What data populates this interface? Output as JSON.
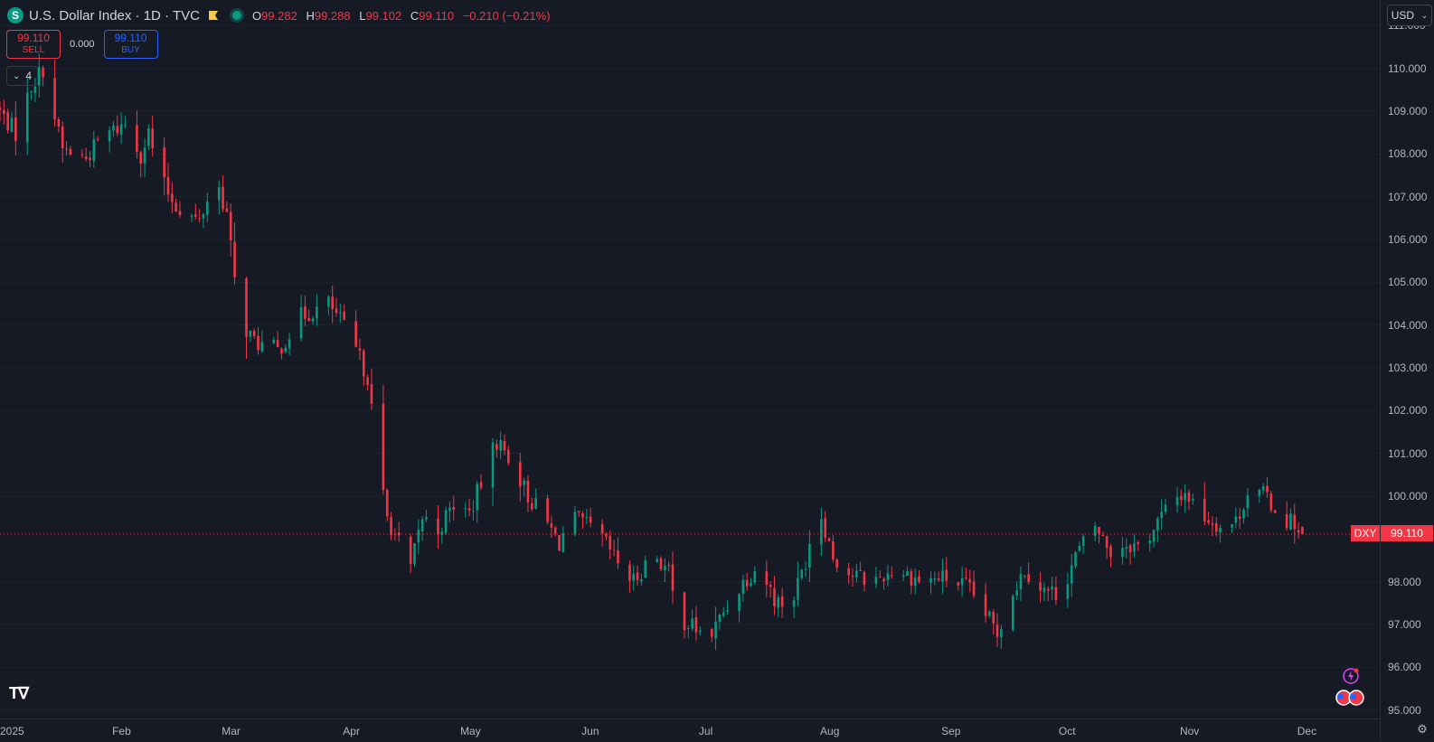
{
  "header": {
    "symbol_icon": "S",
    "title": "U.S. Dollar Index · 1D · TVC",
    "ohlc": {
      "o_label": "O",
      "o_value": "99.282",
      "h_label": "H",
      "h_value": "99.288",
      "l_label": "L",
      "l_value": "99.102",
      "c_label": "C",
      "c_value": "99.110",
      "change": "−0.210 (−0.21%)"
    }
  },
  "trade": {
    "sell_price": "99.110",
    "sell_label": "SELL",
    "spread": "0.000",
    "buy_price": "99.110",
    "buy_label": "BUY"
  },
  "indicators_toggle": {
    "count": "4"
  },
  "currency_selector": {
    "label": "USD"
  },
  "last_price": {
    "symbol": "DXY",
    "value": "99.110"
  },
  "colors": {
    "up": "#089981",
    "down": "#f23645",
    "background": "#161a25",
    "grid": "#1f2330"
  },
  "chart_data": {
    "type": "candlestick",
    "title": "",
    "xlabel": "",
    "ylabel": "",
    "ylim": [
      94.8,
      111.6
    ],
    "y_ticks": [
      "111.000",
      "110.000",
      "109.000",
      "108.000",
      "107.000",
      "106.000",
      "105.000",
      "104.000",
      "103.000",
      "102.000",
      "101.000",
      "100.000",
      "98.000",
      "97.000",
      "96.000",
      "95.000"
    ],
    "x_ticks": [
      {
        "label": "2025",
        "day": 0
      },
      {
        "label": "Feb",
        "day": 31
      },
      {
        "label": "Mar",
        "day": 59
      },
      {
        "label": "Apr",
        "day": 90
      },
      {
        "label": "May",
        "day": 120
      },
      {
        "label": "Jun",
        "day": 151
      },
      {
        "label": "Jul",
        "day": 181
      },
      {
        "label": "Aug",
        "day": 212
      },
      {
        "label": "Sep",
        "day": 243
      },
      {
        "label": "Oct",
        "day": 273
      },
      {
        "label": "Nov",
        "day": 304
      },
      {
        "label": "Dec",
        "day": 334
      }
    ],
    "x_range_days": [
      0,
      344
    ],
    "anchors": [
      [
        0,
        109.1
      ],
      [
        5,
        108.5
      ],
      [
        9,
        109.6
      ],
      [
        12,
        110.0
      ],
      [
        17,
        108.1
      ],
      [
        23,
        107.9
      ],
      [
        27,
        108.4
      ],
      [
        33,
        108.7
      ],
      [
        37,
        108.0
      ],
      [
        39,
        108.5
      ],
      [
        42,
        107.4
      ],
      [
        46,
        106.8
      ],
      [
        52,
        106.4
      ],
      [
        56,
        107.5
      ],
      [
        59,
        106.6
      ],
      [
        62,
        104.2
      ],
      [
        66,
        103.6
      ],
      [
        72,
        103.4
      ],
      [
        78,
        104.2
      ],
      [
        85,
        104.5
      ],
      [
        88,
        104.1
      ],
      [
        92,
        103.4
      ],
      [
        95,
        102.8
      ],
      [
        98,
        100.5
      ],
      [
        100,
        99.5
      ],
      [
        106,
        98.3
      ],
      [
        109,
        99.5
      ],
      [
        113,
        99.2
      ],
      [
        117,
        99.8
      ],
      [
        121,
        99.6
      ],
      [
        124,
        100.3
      ],
      [
        128,
        101.3
      ],
      [
        132,
        100.8
      ],
      [
        136,
        100.0
      ],
      [
        140,
        99.5
      ],
      [
        144,
        98.9
      ],
      [
        147,
        99.5
      ],
      [
        151,
        99.3
      ],
      [
        155,
        99.0
      ],
      [
        160,
        98.3
      ],
      [
        163,
        98.0
      ],
      [
        168,
        98.7
      ],
      [
        172,
        98.2
      ],
      [
        174,
        97.2
      ],
      [
        179,
        96.9
      ],
      [
        182,
        96.6
      ],
      [
        186,
        97.3
      ],
      [
        191,
        98.0
      ],
      [
        195,
        98.4
      ],
      [
        199,
        97.6
      ],
      [
        203,
        97.4
      ],
      [
        207,
        98.5
      ],
      [
        210,
        99.9
      ],
      [
        214,
        98.6
      ],
      [
        218,
        98.2
      ],
      [
        224,
        98.0
      ],
      [
        230,
        98.3
      ],
      [
        237,
        98.0
      ],
      [
        242,
        98.1
      ],
      [
        248,
        97.9
      ],
      [
        252,
        97.4
      ],
      [
        256,
        96.8
      ],
      [
        259,
        97.6
      ],
      [
        263,
        98.3
      ],
      [
        268,
        97.8
      ],
      [
        272,
        97.7
      ],
      [
        276,
        98.6
      ],
      [
        281,
        99.3
      ],
      [
        285,
        98.7
      ],
      [
        289,
        98.9
      ],
      [
        293,
        98.8
      ],
      [
        297,
        99.4
      ],
      [
        301,
        99.9
      ],
      [
        304,
        100.1
      ],
      [
        308,
        99.6
      ],
      [
        313,
        99.3
      ],
      [
        317,
        99.4
      ],
      [
        320,
        100.1
      ],
      [
        325,
        100.0
      ],
      [
        328,
        99.5
      ],
      [
        332,
        99.4
      ],
      [
        333,
        99.11
      ]
    ],
    "last": {
      "open": 99.282,
      "high": 99.288,
      "low": 99.102,
      "close": 99.11
    }
  }
}
